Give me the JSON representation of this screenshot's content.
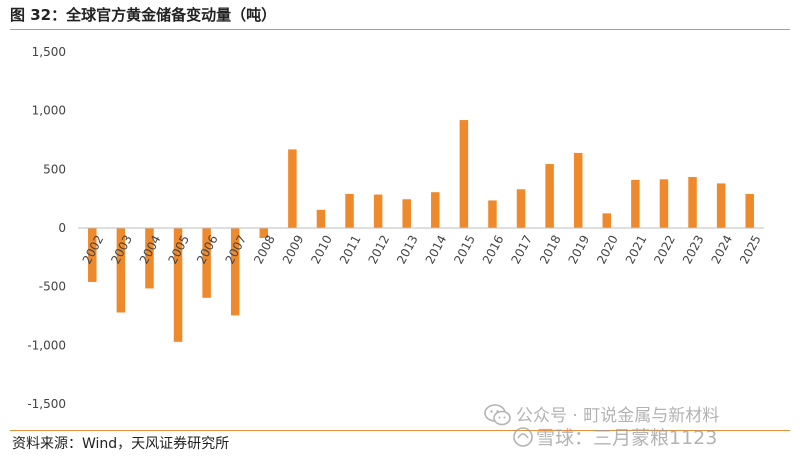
{
  "figure": {
    "title": "图 32：全球官方黄金储备变动量（吨）",
    "source": "资料来源：Wind，天风证券研究所"
  },
  "watermark": {
    "line1": "公众号 · 町说金属与新材料",
    "line2": "雪球：三月蒙粮1123",
    "icon": "wechat-icon",
    "icon2": "snowball-icon"
  },
  "colors": {
    "bar": "#ee8a2b",
    "rule": "#e88f3a",
    "axis": "#bdbdbd"
  },
  "chart_data": {
    "type": "bar",
    "title": "图 32：全球官方黄金储备变动量（吨）",
    "xlabel": "",
    "ylabel": "",
    "categories": [
      "2002",
      "2003",
      "2004",
      "2005",
      "2006",
      "2007",
      "2008",
      "2009",
      "2010",
      "2011",
      "2012",
      "2013",
      "2014",
      "2015",
      "2016",
      "2017",
      "2018",
      "2019",
      "2020",
      "2021",
      "2022",
      "2023",
      "2024",
      "2025"
    ],
    "values": [
      -460,
      -720,
      -515,
      -970,
      -595,
      -745,
      -85,
      670,
      155,
      290,
      285,
      245,
      305,
      920,
      235,
      330,
      545,
      640,
      125,
      410,
      415,
      435,
      380,
      290
    ],
    "ylim": [
      -1500,
      1500
    ],
    "yticks": [
      -1500,
      -1000,
      -500,
      0,
      500,
      1000,
      1500
    ],
    "ytick_labels": [
      "-1,500",
      "-1,000",
      "-500",
      "0",
      "500",
      "1,000",
      "1,500"
    ],
    "grid": false,
    "legend": "none"
  }
}
